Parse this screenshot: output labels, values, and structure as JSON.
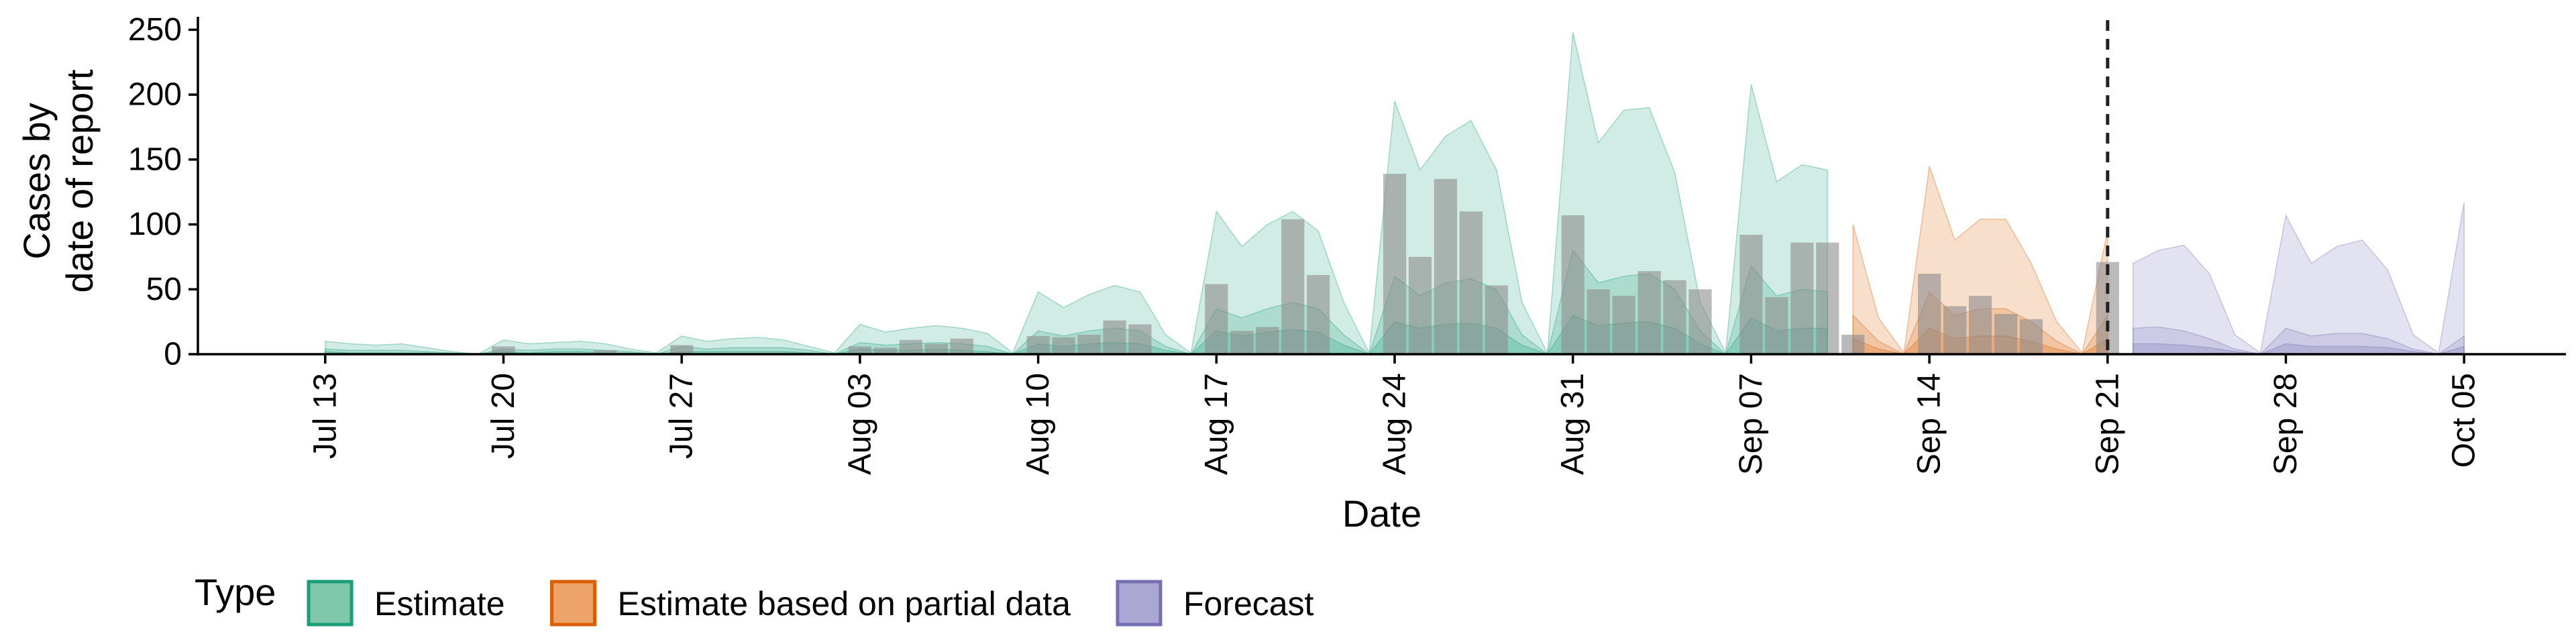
{
  "chart_data": {
    "type": "area",
    "xlabel": "Date",
    "ylabel": [
      "Cases by",
      "date of report"
    ],
    "ylim": [
      0,
      260
    ],
    "xlim": [
      "2020-07-08",
      "2020-10-09"
    ],
    "yticks": [
      0,
      50,
      100,
      150,
      200,
      250
    ],
    "xticks": [
      {
        "date": "2020-07-13",
        "label": "Jul 13"
      },
      {
        "date": "2020-07-20",
        "label": "Jul 20"
      },
      {
        "date": "2020-07-27",
        "label": "Jul 27"
      },
      {
        "date": "2020-08-03",
        "label": "Aug 03"
      },
      {
        "date": "2020-08-10",
        "label": "Aug 10"
      },
      {
        "date": "2020-08-17",
        "label": "Aug 17"
      },
      {
        "date": "2020-08-24",
        "label": "Aug 24"
      },
      {
        "date": "2020-08-31",
        "label": "Aug 31"
      },
      {
        "date": "2020-09-07",
        "label": "Sep 07"
      },
      {
        "date": "2020-09-14",
        "label": "Sep 14"
      },
      {
        "date": "2020-09-21",
        "label": "Sep 21"
      },
      {
        "date": "2020-09-28",
        "label": "Sep 28"
      },
      {
        "date": "2020-10-05",
        "label": "Oct 05"
      }
    ],
    "vline_date": "2020-09-21",
    "grid": false,
    "legend": {
      "title": "Type",
      "position": "bottom",
      "entries": [
        {
          "label": "Estimate",
          "fill": "#7fc8ab",
          "stroke": "#1b9e77"
        },
        {
          "label": "Estimate based on partial data",
          "fill": "#eea469",
          "stroke": "#d95f02"
        },
        {
          "label": "Forecast",
          "fill": "#aaa8d2",
          "stroke": "#7570b3"
        }
      ]
    },
    "band_colors": {
      "Estimate": "#1b9e77",
      "Estimate based on partial data": "#d95f02",
      "Forecast": "#7570b3"
    },
    "bar_color": "#8c8c8c",
    "bands": [
      {
        "type": "Estimate",
        "dates": [
          "2020-07-13",
          "2020-07-14",
          "2020-07-15",
          "2020-07-16",
          "2020-07-17",
          "2020-07-18",
          "2020-07-19",
          "2020-07-20",
          "2020-07-21",
          "2020-07-22",
          "2020-07-23",
          "2020-07-24",
          "2020-07-25",
          "2020-07-26",
          "2020-07-27",
          "2020-07-28",
          "2020-07-29",
          "2020-07-30",
          "2020-07-31",
          "2020-08-01",
          "2020-08-02",
          "2020-08-03",
          "2020-08-04",
          "2020-08-05",
          "2020-08-06",
          "2020-08-07",
          "2020-08-08",
          "2020-08-09",
          "2020-08-10",
          "2020-08-11",
          "2020-08-12",
          "2020-08-13",
          "2020-08-14",
          "2020-08-15",
          "2020-08-16",
          "2020-08-17",
          "2020-08-18",
          "2020-08-19",
          "2020-08-20",
          "2020-08-21",
          "2020-08-22",
          "2020-08-23",
          "2020-08-24",
          "2020-08-25",
          "2020-08-26",
          "2020-08-27",
          "2020-08-28",
          "2020-08-29",
          "2020-08-30",
          "2020-08-31",
          "2020-09-01",
          "2020-09-02",
          "2020-09-03",
          "2020-09-04",
          "2020-09-05",
          "2020-09-06",
          "2020-09-07",
          "2020-09-08",
          "2020-09-09",
          "2020-09-10"
        ],
        "upper90": [
          10,
          8,
          7,
          8,
          5,
          2,
          0,
          11,
          8,
          9,
          10,
          8,
          4,
          1,
          14,
          10,
          12,
          13,
          11,
          6,
          1,
          23,
          17,
          20,
          22,
          20,
          16,
          1,
          48,
          36,
          46,
          53,
          48,
          15,
          1,
          110,
          83,
          100,
          110,
          95,
          40,
          1,
          195,
          142,
          168,
          180,
          142,
          40,
          1,
          248,
          163,
          188,
          190,
          140,
          40,
          1,
          208,
          133,
          146,
          142
        ],
        "upper50": [
          4,
          3,
          3,
          3,
          2,
          1,
          0,
          4,
          3,
          4,
          4,
          3,
          2,
          0,
          6,
          4,
          5,
          5,
          5,
          3,
          0,
          9,
          7,
          8,
          9,
          8,
          6,
          0,
          18,
          14,
          18,
          20,
          18,
          6,
          0,
          35,
          28,
          35,
          40,
          35,
          15,
          0,
          60,
          45,
          55,
          58,
          50,
          15,
          0,
          80,
          55,
          60,
          62,
          50,
          18,
          0,
          68,
          45,
          50,
          48
        ],
        "upper20": [
          2,
          1,
          1,
          1,
          1,
          0,
          0,
          2,
          1,
          2,
          2,
          1,
          1,
          0,
          2,
          2,
          2,
          2,
          2,
          1,
          0,
          4,
          3,
          3,
          4,
          3,
          2,
          0,
          8,
          6,
          8,
          9,
          8,
          3,
          0,
          18,
          14,
          17,
          19,
          17,
          7,
          0,
          25,
          20,
          23,
          24,
          20,
          7,
          0,
          30,
          22,
          24,
          25,
          20,
          8,
          0,
          28,
          18,
          20,
          20
        ]
      },
      {
        "type": "Estimate based on partial data",
        "dates": [
          "2020-09-11",
          "2020-09-12",
          "2020-09-13",
          "2020-09-14",
          "2020-09-15",
          "2020-09-16",
          "2020-09-17",
          "2020-09-18",
          "2020-09-19",
          "2020-09-20",
          "2020-09-21"
        ],
        "upper90": [
          100,
          28,
          1,
          145,
          88,
          104,
          104,
          70,
          25,
          1,
          95
        ],
        "upper50": [
          30,
          10,
          0,
          48,
          30,
          35,
          35,
          25,
          10,
          0,
          30
        ],
        "upper20": [
          12,
          4,
          0,
          20,
          12,
          14,
          14,
          10,
          4,
          0,
          12
        ]
      },
      {
        "type": "Forecast",
        "dates": [
          "2020-09-22",
          "2020-09-23",
          "2020-09-24",
          "2020-09-25",
          "2020-09-26",
          "2020-09-27",
          "2020-09-28",
          "2020-09-29",
          "2020-09-30",
          "2020-10-01",
          "2020-10-02",
          "2020-10-03",
          "2020-10-04",
          "2020-10-05"
        ],
        "upper90": [
          70,
          80,
          84,
          62,
          15,
          1,
          107,
          70,
          83,
          88,
          65,
          15,
          1,
          117
        ],
        "upper50": [
          20,
          21,
          18,
          12,
          4,
          0,
          20,
          14,
          16,
          16,
          12,
          4,
          0,
          14
        ],
        "upper20": [
          8,
          8,
          7,
          5,
          2,
          0,
          8,
          6,
          6,
          6,
          5,
          2,
          0,
          6
        ]
      }
    ],
    "bars": {
      "dates": [
        "2020-07-20",
        "2020-07-24",
        "2020-07-27",
        "2020-08-03",
        "2020-08-04",
        "2020-08-05",
        "2020-08-06",
        "2020-08-07",
        "2020-08-10",
        "2020-08-11",
        "2020-08-12",
        "2020-08-13",
        "2020-08-14",
        "2020-08-17",
        "2020-08-18",
        "2020-08-19",
        "2020-08-20",
        "2020-08-21",
        "2020-08-24",
        "2020-08-25",
        "2020-08-26",
        "2020-08-27",
        "2020-08-28",
        "2020-08-31",
        "2020-09-01",
        "2020-09-02",
        "2020-09-03",
        "2020-09-04",
        "2020-09-05",
        "2020-09-07",
        "2020-09-08",
        "2020-09-09",
        "2020-09-10",
        "2020-09-11",
        "2020-09-14",
        "2020-09-15",
        "2020-09-16",
        "2020-09-17",
        "2020-09-18",
        "2020-09-21"
      ],
      "values": [
        6,
        3,
        7,
        6,
        5,
        11,
        8,
        12,
        14,
        13,
        15,
        26,
        23,
        54,
        18,
        21,
        104,
        61,
        139,
        75,
        135,
        110,
        53,
        107,
        50,
        45,
        64,
        57,
        50,
        92,
        44,
        86,
        86,
        15,
        62,
        37,
        45,
        31,
        27,
        71
      ]
    }
  }
}
